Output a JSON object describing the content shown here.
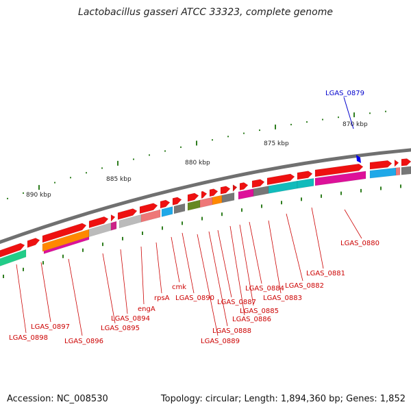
{
  "title": "Lactobacillus gasseri ATCC 33323, complete genome",
  "footer": {
    "accession": "Accession: NC_008530",
    "topology": "Topology: circular; Length: 1,894,360 bp; Genes: 1,852"
  },
  "highlight_color": "#0000cc",
  "label_color": "#cc0000",
  "highlight_label": "LGAS_0879",
  "kbp_labels": [
    "870 kbp",
    "875 kbp",
    "880 kbp",
    "885 kbp",
    "890 kbp"
  ],
  "gene_labels": [
    "LGAS_0880",
    "LGAS_0881",
    "LGAS_0882",
    "LGAS_0883",
    "LGAS_0884",
    "LGAS_0885",
    "LGAS_0886",
    "LGAS_0887",
    "LGAS_0888",
    "LGAS_0889",
    "LGAS_0890",
    "cmk",
    "rpsA",
    "engA",
    "LGAS_0894",
    "LGAS_0895",
    "LGAS_0896",
    "LGAS_0897",
    "LGAS_0898"
  ]
}
